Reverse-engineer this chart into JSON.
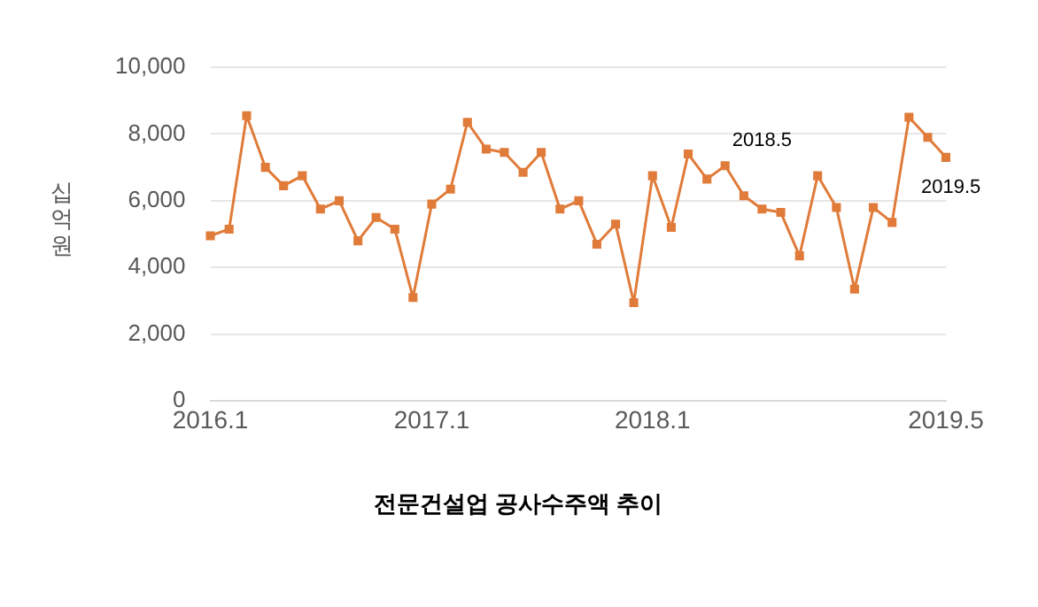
{
  "chart_data": {
    "type": "line",
    "title": "전문건설업 공사수주액 추이",
    "ylabel": "십억 원",
    "x": [
      "2016-01",
      "2016-02",
      "2016-03",
      "2016-04",
      "2016-05",
      "2016-06",
      "2016-07",
      "2016-08",
      "2016-09",
      "2016-10",
      "2016-11",
      "2016-12",
      "2017-01",
      "2017-02",
      "2017-03",
      "2017-04",
      "2017-05",
      "2017-06",
      "2017-07",
      "2017-08",
      "2017-09",
      "2017-10",
      "2017-11",
      "2017-12",
      "2018-01",
      "2018-02",
      "2018-03",
      "2018-04",
      "2018-05",
      "2018-06",
      "2018-07",
      "2018-08",
      "2018-09",
      "2018-10",
      "2018-11",
      "2018-12",
      "2019-01",
      "2019-02",
      "2019-03",
      "2019-04",
      "2019-05"
    ],
    "series": [
      {
        "color": "#e07b39",
        "values": [
          4950,
          5150,
          8550,
          7000,
          6450,
          6750,
          5750,
          6000,
          4800,
          5500,
          5150,
          3100,
          5900,
          6350,
          8350,
          7550,
          7450,
          6850,
          7450,
          5750,
          6000,
          4700,
          5300,
          2950,
          6750,
          5200,
          7400,
          6650,
          7050,
          6150,
          5750,
          5650,
          4350,
          6750,
          5800,
          3350,
          5800,
          5350,
          8500,
          7900,
          7300
        ]
      }
    ],
    "xlim": [
      "2016-01",
      "2019-05"
    ],
    "xticks": [
      {
        "value": "2016-01",
        "label": "2016.1"
      },
      {
        "value": "2017-01",
        "label": "2017.1"
      },
      {
        "value": "2018-01",
        "label": "2018.1"
      },
      {
        "value": "2019-05",
        "label": "2019.5"
      }
    ],
    "ylim": [
      0,
      10000
    ],
    "yticks": [
      {
        "value": 0,
        "label": "0"
      },
      {
        "value": 2000,
        "label": "2,000"
      },
      {
        "value": 4000,
        "label": "4,000"
      },
      {
        "value": 6000,
        "label": "6,000"
      },
      {
        "value": 8000,
        "label": "8,000"
      },
      {
        "value": 10000,
        "label": "10,000"
      }
    ],
    "grid": "y",
    "legend": false,
    "marker": "square",
    "line_style": "solid",
    "annotations": [
      {
        "text": "2018.5",
        "x": "2018-05",
        "y": 7050
      },
      {
        "text": "2019.5",
        "x": "2019-05",
        "y": 7300
      }
    ]
  }
}
